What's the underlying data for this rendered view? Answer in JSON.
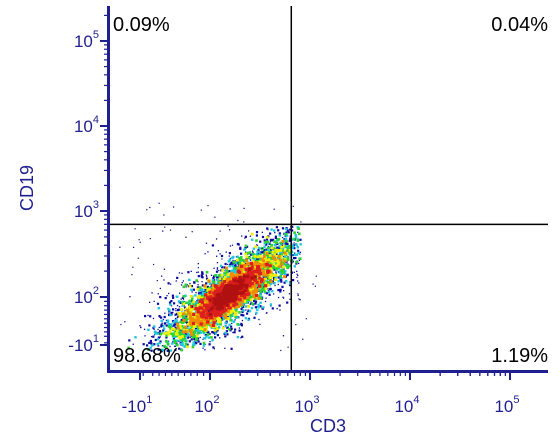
{
  "chart_data": {
    "type": "scatter",
    "subtype": "flow-cytometry-density",
    "xlabel": "CD3",
    "ylabel": "CD19",
    "x_scale": "biexponential",
    "y_scale": "biexponential",
    "x_ticks": [
      {
        "base": "-10",
        "exp": "1",
        "value": -10
      },
      {
        "base": "10",
        "exp": "2",
        "value": 100
      },
      {
        "base": "10",
        "exp": "3",
        "value": 1000
      },
      {
        "base": "10",
        "exp": "4",
        "value": 10000
      },
      {
        "base": "10",
        "exp": "5",
        "value": 100000
      }
    ],
    "y_ticks": [
      {
        "base": "-10",
        "exp": "1",
        "value": -10
      },
      {
        "base": "10",
        "exp": "2",
        "value": 100
      },
      {
        "base": "10",
        "exp": "3",
        "value": 1000
      },
      {
        "base": "10",
        "exp": "4",
        "value": 10000
      },
      {
        "base": "10",
        "exp": "5",
        "value": 100000
      }
    ],
    "gate": {
      "x": 650,
      "y": 700
    },
    "quadrants": [
      {
        "id": "upper-left",
        "label": "0.09%",
        "value": 0.09
      },
      {
        "id": "upper-right",
        "label": "0.04%",
        "value": 0.04
      },
      {
        "id": "lower-left",
        "label": "98.68%",
        "value": 98.68
      },
      {
        "id": "lower-right",
        "label": "1.19%",
        "value": 1.19
      }
    ],
    "grid": false,
    "legend": "none",
    "colors": {
      "axis": "#1f1f8f",
      "gate": "#000000",
      "density_low": "#0a0aa0",
      "density_mid_low": "#1ec8dc",
      "density_mid": "#2bd42b",
      "density_mid_high": "#f0f000",
      "density_high": "#f08c00",
      "density_peak": "#dc1e1e"
    }
  }
}
